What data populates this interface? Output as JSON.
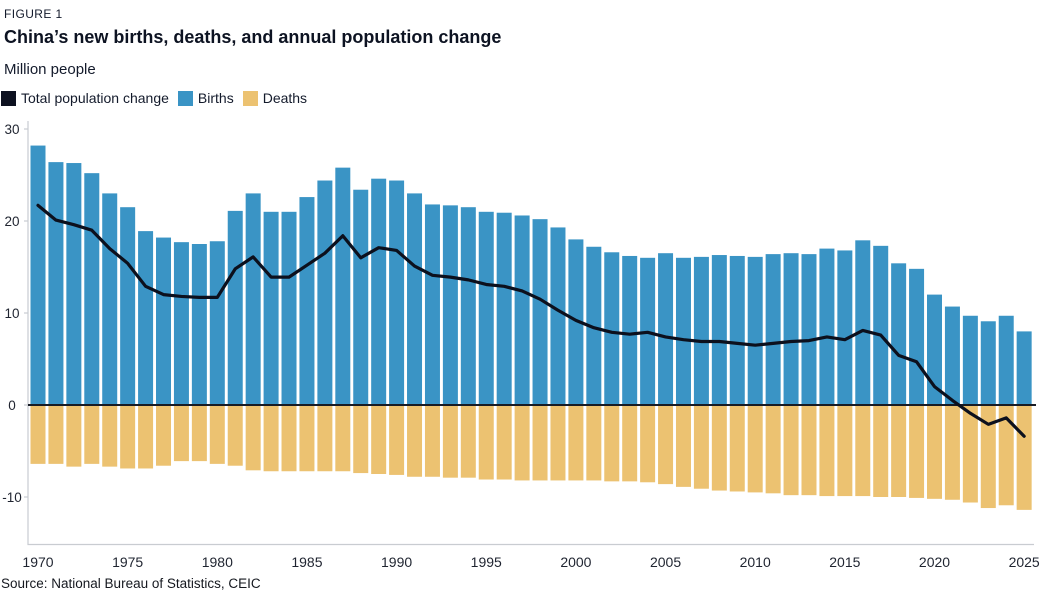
{
  "figure_label": "FIGURE 1",
  "title": "China’s new births, deaths, and annual population change",
  "subtitle": "Million people",
  "source": "Source: National Bureau of Statistics, CEIC",
  "legend": [
    {
      "label": "Total population change",
      "color": "#0d1120"
    },
    {
      "label": "Births",
      "color": "#3a94c5"
    },
    {
      "label": "Deaths",
      "color": "#ecc271"
    }
  ],
  "colors": {
    "axis": "#c9ccd1",
    "zero_line": "#171b24",
    "tick_text": "#1f2430",
    "background": "#ffffff"
  },
  "chart_data": {
    "type": "bar",
    "title": "China’s new births, deaths, and annual population change",
    "xlabel": "",
    "ylabel": "Million people",
    "ylim": [
      -15.1,
      30
    ],
    "yticks": [
      30,
      20,
      10,
      0,
      -10
    ],
    "xticks": [
      1970,
      1975,
      1980,
      1985,
      1990,
      1995,
      2000,
      2005,
      2010,
      2015,
      2020,
      2025
    ],
    "grid": false,
    "legend_position": "top-left",
    "x": [
      1970,
      1971,
      1972,
      1973,
      1974,
      1975,
      1976,
      1977,
      1978,
      1979,
      1980,
      1981,
      1982,
      1983,
      1984,
      1985,
      1986,
      1987,
      1988,
      1989,
      1990,
      1991,
      1992,
      1993,
      1994,
      1995,
      1996,
      1997,
      1998,
      1999,
      2000,
      2001,
      2002,
      2003,
      2004,
      2005,
      2006,
      2007,
      2008,
      2009,
      2010,
      2011,
      2012,
      2013,
      2014,
      2015,
      2016,
      2017,
      2018,
      2019,
      2020,
      2021,
      2022,
      2023,
      2024,
      2025
    ],
    "series": [
      {
        "name": "Births",
        "type": "bar",
        "color": "#3a94c5",
        "values": [
          28.2,
          26.4,
          26.3,
          25.2,
          23.0,
          21.5,
          18.9,
          18.2,
          17.7,
          17.5,
          17.8,
          21.1,
          23.0,
          21.0,
          21.0,
          22.6,
          24.4,
          25.8,
          23.4,
          24.6,
          24.4,
          23.0,
          21.8,
          21.7,
          21.5,
          21.0,
          20.9,
          20.6,
          20.2,
          19.3,
          18.0,
          17.2,
          16.6,
          16.2,
          16.0,
          16.5,
          16.0,
          16.1,
          16.3,
          16.2,
          16.1,
          16.4,
          16.5,
          16.4,
          17.0,
          16.8,
          17.9,
          17.3,
          15.4,
          14.8,
          12.0,
          10.7,
          9.7,
          9.1,
          9.7,
          8.0
        ]
      },
      {
        "name": "Deaths",
        "type": "bar",
        "color": "#ecc271",
        "values": [
          -6.4,
          -6.4,
          -6.7,
          -6.4,
          -6.7,
          -6.9,
          -6.9,
          -6.6,
          -6.1,
          -6.1,
          -6.4,
          -6.6,
          -7.1,
          -7.2,
          -7.2,
          -7.2,
          -7.2,
          -7.2,
          -7.4,
          -7.5,
          -7.6,
          -7.8,
          -7.8,
          -7.9,
          -7.9,
          -8.1,
          -8.1,
          -8.2,
          -8.2,
          -8.2,
          -8.2,
          -8.2,
          -8.3,
          -8.3,
          -8.4,
          -8.6,
          -8.9,
          -9.1,
          -9.3,
          -9.4,
          -9.5,
          -9.6,
          -9.8,
          -9.8,
          -9.9,
          -9.9,
          -9.9,
          -10.0,
          -10.0,
          -10.1,
          -10.2,
          -10.3,
          -10.6,
          -11.2,
          -10.9,
          -11.4
        ]
      },
      {
        "name": "Total population change",
        "type": "line",
        "color": "#0c101d",
        "values": [
          21.7,
          20.1,
          19.6,
          19.0,
          17.0,
          15.4,
          12.9,
          12.0,
          11.8,
          11.7,
          11.7,
          14.8,
          16.1,
          13.9,
          13.9,
          15.2,
          16.5,
          18.4,
          16.0,
          17.1,
          16.8,
          15.1,
          14.1,
          13.9,
          13.6,
          13.1,
          12.9,
          12.4,
          11.5,
          10.3,
          9.2,
          8.4,
          7.9,
          7.7,
          7.9,
          7.4,
          7.1,
          6.9,
          6.9,
          6.7,
          6.5,
          6.7,
          6.9,
          7.0,
          7.4,
          7.1,
          8.1,
          7.6,
          5.4,
          4.7,
          2.0,
          0.5,
          -0.9,
          -2.1,
          -1.4,
          -3.4
        ]
      }
    ]
  }
}
